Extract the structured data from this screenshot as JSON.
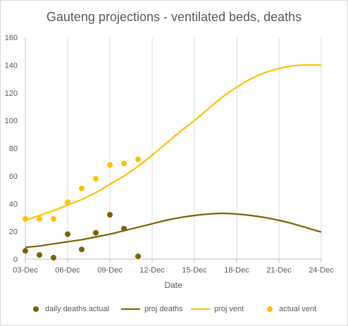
{
  "chart_data": {
    "type": "line",
    "title": "Gauteng projections - ventilated beds, deaths",
    "xlabel": "Date",
    "ylabel": "",
    "ylim": [
      0,
      160
    ],
    "y_ticks": [
      "0",
      "20",
      "40",
      "60",
      "80",
      "100",
      "120",
      "140",
      "160"
    ],
    "x_ticks": [
      "03-Dec",
      "06-Dec",
      "09-Dec",
      "12-Dec",
      "15-Dec",
      "18-Dec",
      "21-Dec",
      "24-Dec"
    ],
    "grid": "vertical",
    "legend_position": "bottom",
    "series": [
      {
        "name": "daily deaths actual",
        "kind": "scatter",
        "color": "#7f6000",
        "points": [
          [
            0,
            6
          ],
          [
            1,
            3
          ],
          [
            2,
            1
          ],
          [
            3,
            18
          ],
          [
            4,
            7
          ],
          [
            5,
            19
          ],
          [
            6,
            32
          ],
          [
            7,
            22
          ],
          [
            8,
            2
          ]
        ]
      },
      {
        "name": "proj deaths",
        "kind": "line",
        "color": "#7f6000",
        "points": [
          [
            0,
            8.5
          ],
          [
            1,
            9.5
          ],
          [
            2,
            11
          ],
          [
            3,
            12.5
          ],
          [
            4,
            14
          ],
          [
            5,
            16
          ],
          [
            6,
            18
          ],
          [
            7,
            20.5
          ],
          [
            8,
            23
          ],
          [
            9,
            25.5
          ],
          [
            10,
            28
          ],
          [
            11,
            30
          ],
          [
            12,
            31.5
          ],
          [
            13,
            32.5
          ],
          [
            14,
            33
          ],
          [
            15,
            32.5
          ],
          [
            16,
            31.5
          ],
          [
            17,
            30
          ],
          [
            18,
            28
          ],
          [
            19,
            25.5
          ],
          [
            20,
            22.5
          ],
          [
            21,
            19.5
          ]
        ]
      },
      {
        "name": "proj vent",
        "kind": "line",
        "color": "#ffc000",
        "points": [
          [
            0,
            28
          ],
          [
            1,
            31.5
          ],
          [
            2,
            35
          ],
          [
            3,
            39
          ],
          [
            4,
            43
          ],
          [
            5,
            48
          ],
          [
            6,
            54
          ],
          [
            7,
            60
          ],
          [
            8,
            67
          ],
          [
            9,
            75
          ],
          [
            10,
            83.5
          ],
          [
            11,
            92
          ],
          [
            12,
            100
          ],
          [
            13,
            108.5
          ],
          [
            14,
            117
          ],
          [
            15,
            124
          ],
          [
            16,
            130
          ],
          [
            17,
            134.5
          ],
          [
            18,
            137.5
          ],
          [
            19,
            139.5
          ],
          [
            20,
            140
          ],
          [
            21,
            140
          ]
        ]
      },
      {
        "name": "actual vent",
        "kind": "scatter",
        "color": "#ffc000",
        "points": [
          [
            0,
            29
          ],
          [
            1,
            29
          ],
          [
            2,
            29
          ],
          [
            3,
            41
          ],
          [
            4,
            51
          ],
          [
            5,
            58
          ],
          [
            6,
            68
          ],
          [
            7,
            69
          ],
          [
            8,
            72
          ]
        ]
      }
    ]
  }
}
